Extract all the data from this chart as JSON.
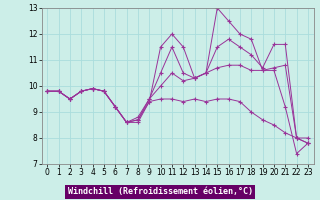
{
  "xlabel": "Windchill (Refroidissement éolien,°C)",
  "background_color": "#cceee8",
  "grid_color": "#aadddd",
  "line_color": "#993399",
  "xlabel_bg": "#660066",
  "xlabel_fg": "#ffffff",
  "xlim": [
    -0.5,
    23.5
  ],
  "ylim": [
    7,
    13
  ],
  "yticks": [
    7,
    8,
    9,
    10,
    11,
    12,
    13
  ],
  "xticks": [
    0,
    1,
    2,
    3,
    4,
    5,
    6,
    7,
    8,
    9,
    10,
    11,
    12,
    13,
    14,
    15,
    16,
    17,
    18,
    19,
    20,
    21,
    22,
    23
  ],
  "lines": [
    [
      9.8,
      9.8,
      9.5,
      9.8,
      9.9,
      9.8,
      9.2,
      8.6,
      8.6,
      9.4,
      11.5,
      12.0,
      11.5,
      10.3,
      10.5,
      13.0,
      12.5,
      12.0,
      11.8,
      10.6,
      10.6,
      9.2,
      7.4,
      7.8
    ],
    [
      9.8,
      9.8,
      9.5,
      9.8,
      9.9,
      9.8,
      9.2,
      8.6,
      8.7,
      9.5,
      10.5,
      11.5,
      10.5,
      10.3,
      10.5,
      11.5,
      11.8,
      11.5,
      11.2,
      10.7,
      11.6,
      11.6,
      8.0,
      7.8
    ],
    [
      9.8,
      9.8,
      9.5,
      9.8,
      9.9,
      9.8,
      9.2,
      8.6,
      8.8,
      9.5,
      10.0,
      10.5,
      10.2,
      10.3,
      10.5,
      10.7,
      10.8,
      10.8,
      10.6,
      10.6,
      10.7,
      10.8,
      8.0,
      8.0
    ],
    [
      9.8,
      9.8,
      9.5,
      9.8,
      9.9,
      9.8,
      9.2,
      8.6,
      8.7,
      9.4,
      9.5,
      9.5,
      9.4,
      9.5,
      9.4,
      9.5,
      9.5,
      9.4,
      9.0,
      8.7,
      8.5,
      8.2,
      8.0,
      7.8
    ]
  ]
}
